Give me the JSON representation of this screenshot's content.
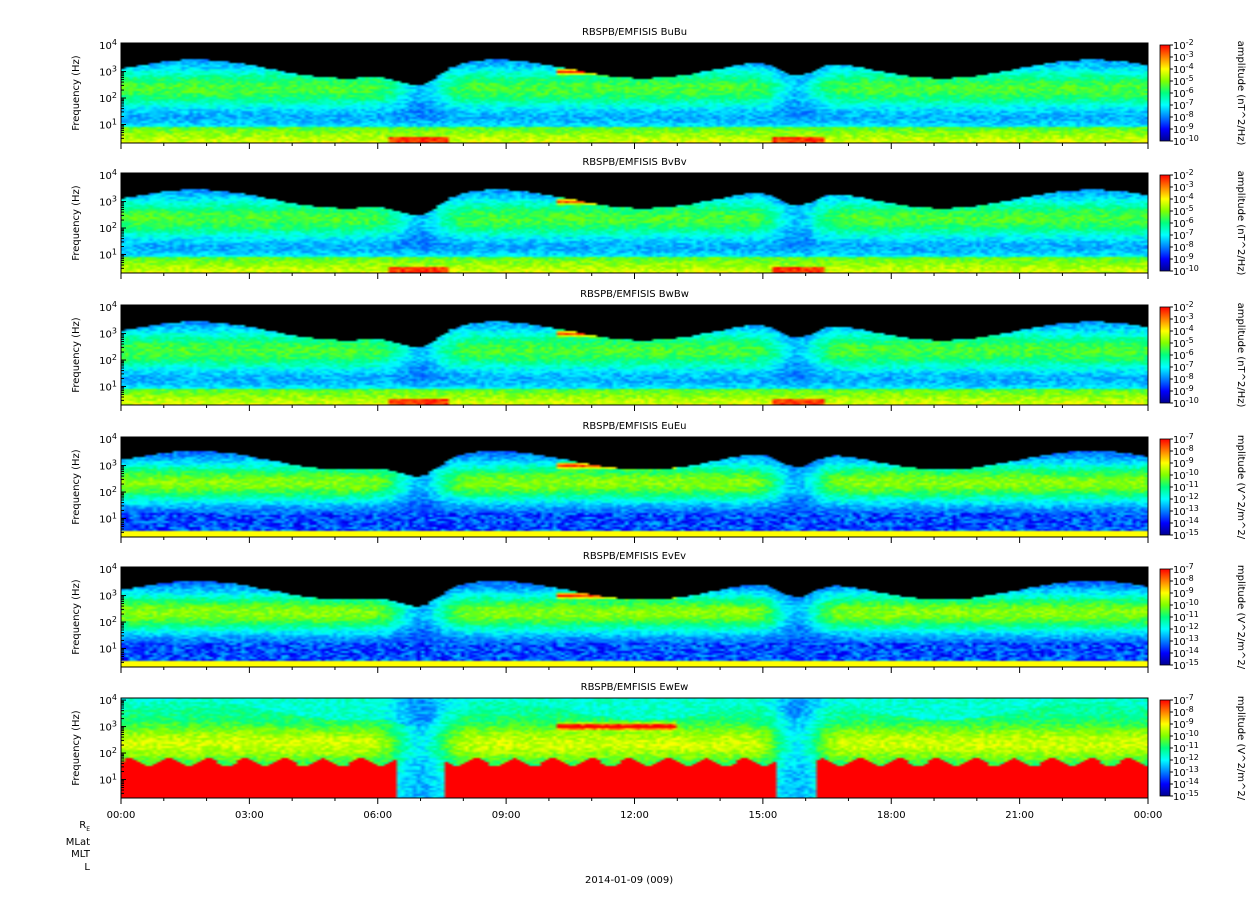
{
  "chart_data": {
    "type": "heatmap",
    "date_label": "2014-01-09 (009)",
    "x_ticks": [
      "00:00",
      "03:00",
      "06:00",
      "09:00",
      "12:00",
      "15:00",
      "18:00",
      "21:00",
      "00:00"
    ],
    "x_range_hours": [
      0,
      24
    ],
    "y_ticks": [
      {
        "base": "10",
        "exp": "1",
        "value": 10
      },
      {
        "base": "10",
        "exp": "2",
        "value": 100
      },
      {
        "base": "10",
        "exp": "3",
        "value": 1000
      },
      {
        "base": "10",
        "exp": "4",
        "value": 10000
      }
    ],
    "y_scale": "log",
    "ylim": [
      2,
      12000
    ],
    "ephemeris_labels": [
      "R",
      "MLat",
      "MLT",
      "L"
    ],
    "ephemeris_subscript": "E",
    "colormap": [
      "#000090",
      "#0000ff",
      "#0080ff",
      "#00ffff",
      "#00ff80",
      "#80ff00",
      "#ffff00",
      "#ff8000",
      "#ff0000"
    ],
    "panels": [
      {
        "title": "RBSPB/EMFISIS  BuBu",
        "ylabel": "Frequency (Hz)",
        "cbar_label": "amplitude (nT^2/Hz)",
        "cbar_ticks": [
          {
            "base": "10",
            "exp": "-2"
          },
          {
            "base": "10",
            "exp": "-3"
          },
          {
            "base": "10",
            "exp": "-4"
          },
          {
            "base": "10",
            "exp": "-5"
          },
          {
            "base": "10",
            "exp": "-6"
          },
          {
            "base": "10",
            "exp": "-7"
          },
          {
            "base": "10",
            "exp": "-8"
          },
          {
            "base": "10",
            "exp": "-9"
          },
          {
            "base": "10",
            "exp": "-10"
          }
        ],
        "kind": "B"
      },
      {
        "title": "RBSPB/EMFISIS  BvBv",
        "ylabel": "Frequency (Hz)",
        "cbar_label": "amplitude (nT^2/Hz)",
        "cbar_ticks": [
          {
            "base": "10",
            "exp": "-2"
          },
          {
            "base": "10",
            "exp": "-3"
          },
          {
            "base": "10",
            "exp": "-4"
          },
          {
            "base": "10",
            "exp": "-5"
          },
          {
            "base": "10",
            "exp": "-6"
          },
          {
            "base": "10",
            "exp": "-7"
          },
          {
            "base": "10",
            "exp": "-8"
          },
          {
            "base": "10",
            "exp": "-9"
          },
          {
            "base": "10",
            "exp": "-10"
          }
        ],
        "kind": "B"
      },
      {
        "title": "RBSPB/EMFISIS  BwBw",
        "ylabel": "Frequency (Hz)",
        "cbar_label": "amplitude (nT^2/Hz)",
        "cbar_ticks": [
          {
            "base": "10",
            "exp": "-2"
          },
          {
            "base": "10",
            "exp": "-3"
          },
          {
            "base": "10",
            "exp": "-4"
          },
          {
            "base": "10",
            "exp": "-5"
          },
          {
            "base": "10",
            "exp": "-6"
          },
          {
            "base": "10",
            "exp": "-7"
          },
          {
            "base": "10",
            "exp": "-8"
          },
          {
            "base": "10",
            "exp": "-9"
          },
          {
            "base": "10",
            "exp": "-10"
          }
        ],
        "kind": "B"
      },
      {
        "title": "RBSPB/EMFISIS  EuEu",
        "ylabel": "Frequency (Hz)",
        "cbar_label": "mplitude (V^2/m^2/",
        "cbar_ticks": [
          {
            "base": "10",
            "exp": "-7"
          },
          {
            "base": "10",
            "exp": "-8"
          },
          {
            "base": "10",
            "exp": "-9"
          },
          {
            "base": "10",
            "exp": "-10"
          },
          {
            "base": "10",
            "exp": "-11"
          },
          {
            "base": "10",
            "exp": "-12"
          },
          {
            "base": "10",
            "exp": "-13"
          },
          {
            "base": "10",
            "exp": "-14"
          },
          {
            "base": "10",
            "exp": "-15"
          }
        ],
        "kind": "E"
      },
      {
        "title": "RBSPB/EMFISIS  EvEv",
        "ylabel": "Frequency (Hz)",
        "cbar_label": "mplitude (V^2/m^2/",
        "cbar_ticks": [
          {
            "base": "10",
            "exp": "-7"
          },
          {
            "base": "10",
            "exp": "-8"
          },
          {
            "base": "10",
            "exp": "-9"
          },
          {
            "base": "10",
            "exp": "-10"
          },
          {
            "base": "10",
            "exp": "-11"
          },
          {
            "base": "10",
            "exp": "-12"
          },
          {
            "base": "10",
            "exp": "-13"
          },
          {
            "base": "10",
            "exp": "-14"
          },
          {
            "base": "10",
            "exp": "-15"
          }
        ],
        "kind": "E"
      },
      {
        "title": "RBSPB/EMFISIS  EwEw",
        "ylabel": "Frequency (Hz)",
        "cbar_label": "mplitude (V^2/m^2/",
        "cbar_ticks": [
          {
            "base": "10",
            "exp": "-7"
          },
          {
            "base": "10",
            "exp": "-8"
          },
          {
            "base": "10",
            "exp": "-9"
          },
          {
            "base": "10",
            "exp": "-10"
          },
          {
            "base": "10",
            "exp": "-11"
          },
          {
            "base": "10",
            "exp": "-12"
          },
          {
            "base": "10",
            "exp": "-13"
          },
          {
            "base": "10",
            "exp": "-14"
          },
          {
            "base": "10",
            "exp": "-15"
          }
        ],
        "kind": "EW"
      }
    ]
  }
}
